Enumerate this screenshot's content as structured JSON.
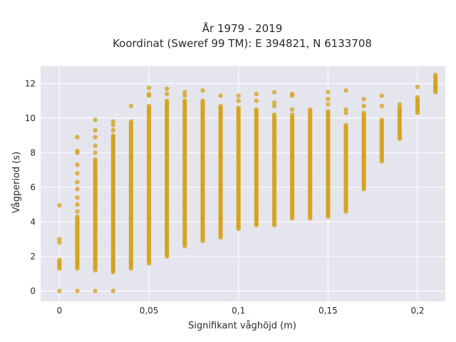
{
  "chart_data": {
    "type": "scatter",
    "title_line1": "År 1979 - 2019",
    "title_line2": "Koordinat (Sweref 99 TM): E 394821, N 6133708",
    "xlabel": "Signifikant våghöjd (m)",
    "ylabel": "Vågperiod (s)",
    "xlim": [
      -0.0105,
      0.2155
    ],
    "ylim": [
      -0.6,
      13.0
    ],
    "xticks": [
      {
        "value": 0,
        "label": "0"
      },
      {
        "value": 0.05,
        "label": "0,05"
      },
      {
        "value": 0.1,
        "label": "0,1"
      },
      {
        "value": 0.15,
        "label": "0,15"
      },
      {
        "value": 0.2,
        "label": "0,2"
      }
    ],
    "yticks": [
      {
        "value": 0,
        "label": "0"
      },
      {
        "value": 2,
        "label": "2"
      },
      {
        "value": 4,
        "label": "4"
      },
      {
        "value": 6,
        "label": "6"
      },
      {
        "value": 8,
        "label": "8"
      },
      {
        "value": 10,
        "label": "10"
      },
      {
        "value": 12,
        "label": "12"
      }
    ],
    "grid": true,
    "legend": "none",
    "marker_color": "#D4A017",
    "background_color": "#E5E5EE",
    "columns": [
      {
        "x": 0.0,
        "range": [
          1.3,
          1.8
        ],
        "extra": [
          0,
          2.8,
          3.0,
          4.95
        ]
      },
      {
        "x": 0.01,
        "range": [
          1.3,
          4.3
        ],
        "extra": [
          0,
          4.6,
          5.0,
          5.4,
          5.9,
          6.3,
          6.8,
          7.3,
          8.0,
          8.1,
          8.9
        ]
      },
      {
        "x": 0.02,
        "range": [
          1.2,
          7.6
        ],
        "extra": [
          0,
          8.0,
          8.4,
          8.9,
          9.3,
          9.9
        ]
      },
      {
        "x": 0.03,
        "range": [
          1.1,
          9.0
        ],
        "extra": [
          0,
          9.3,
          9.6,
          9.8
        ]
      },
      {
        "x": 0.04,
        "range": [
          1.3,
          9.8
        ],
        "extra": [
          10.7
        ]
      },
      {
        "x": 0.05,
        "range": [
          1.6,
          10.7
        ],
        "extra": [
          11.3,
          11.4,
          11.75
        ]
      },
      {
        "x": 0.06,
        "range": [
          2.0,
          11.0
        ],
        "extra": [
          11.4,
          11.7
        ]
      },
      {
        "x": 0.07,
        "range": [
          2.6,
          11.0
        ],
        "extra": [
          11.3,
          11.5
        ]
      },
      {
        "x": 0.08,
        "range": [
          2.9,
          11.0
        ],
        "extra": [
          11.6
        ]
      },
      {
        "x": 0.09,
        "range": [
          3.1,
          10.7
        ],
        "extra": [
          11.3
        ]
      },
      {
        "x": 0.1,
        "range": [
          3.6,
          10.6
        ],
        "extra": [
          11.0,
          11.3
        ]
      },
      {
        "x": 0.11,
        "range": [
          3.8,
          10.5
        ],
        "extra": [
          11.0,
          11.4
        ]
      },
      {
        "x": 0.12,
        "range": [
          3.8,
          10.2
        ],
        "extra": [
          10.7,
          10.9,
          11.5
        ]
      },
      {
        "x": 0.13,
        "range": [
          4.2,
          10.2
        ],
        "extra": [
          10.5,
          11.3,
          11.4
        ]
      },
      {
        "x": 0.14,
        "range": [
          4.2,
          10.5
        ],
        "extra": []
      },
      {
        "x": 0.15,
        "range": [
          4.3,
          10.4
        ],
        "extra": [
          10.8,
          11.1,
          11.5
        ]
      },
      {
        "x": 0.16,
        "range": [
          4.6,
          9.6
        ],
        "extra": [
          10.3,
          10.5,
          11.6
        ]
      },
      {
        "x": 0.17,
        "range": [
          5.9,
          10.3
        ],
        "extra": [
          10.7,
          11.1
        ]
      },
      {
        "x": 0.18,
        "range": [
          7.5,
          9.9
        ],
        "extra": [
          10.7,
          11.3
        ]
      },
      {
        "x": 0.19,
        "range": [
          8.8,
          10.6
        ],
        "extra": [
          10.8
        ]
      },
      {
        "x": 0.2,
        "range": [
          10.3,
          11.2
        ],
        "extra": [
          11.8
        ]
      },
      {
        "x": 0.21,
        "range": [
          11.5,
          12.5
        ],
        "extra": [
          11.8
        ]
      }
    ]
  }
}
